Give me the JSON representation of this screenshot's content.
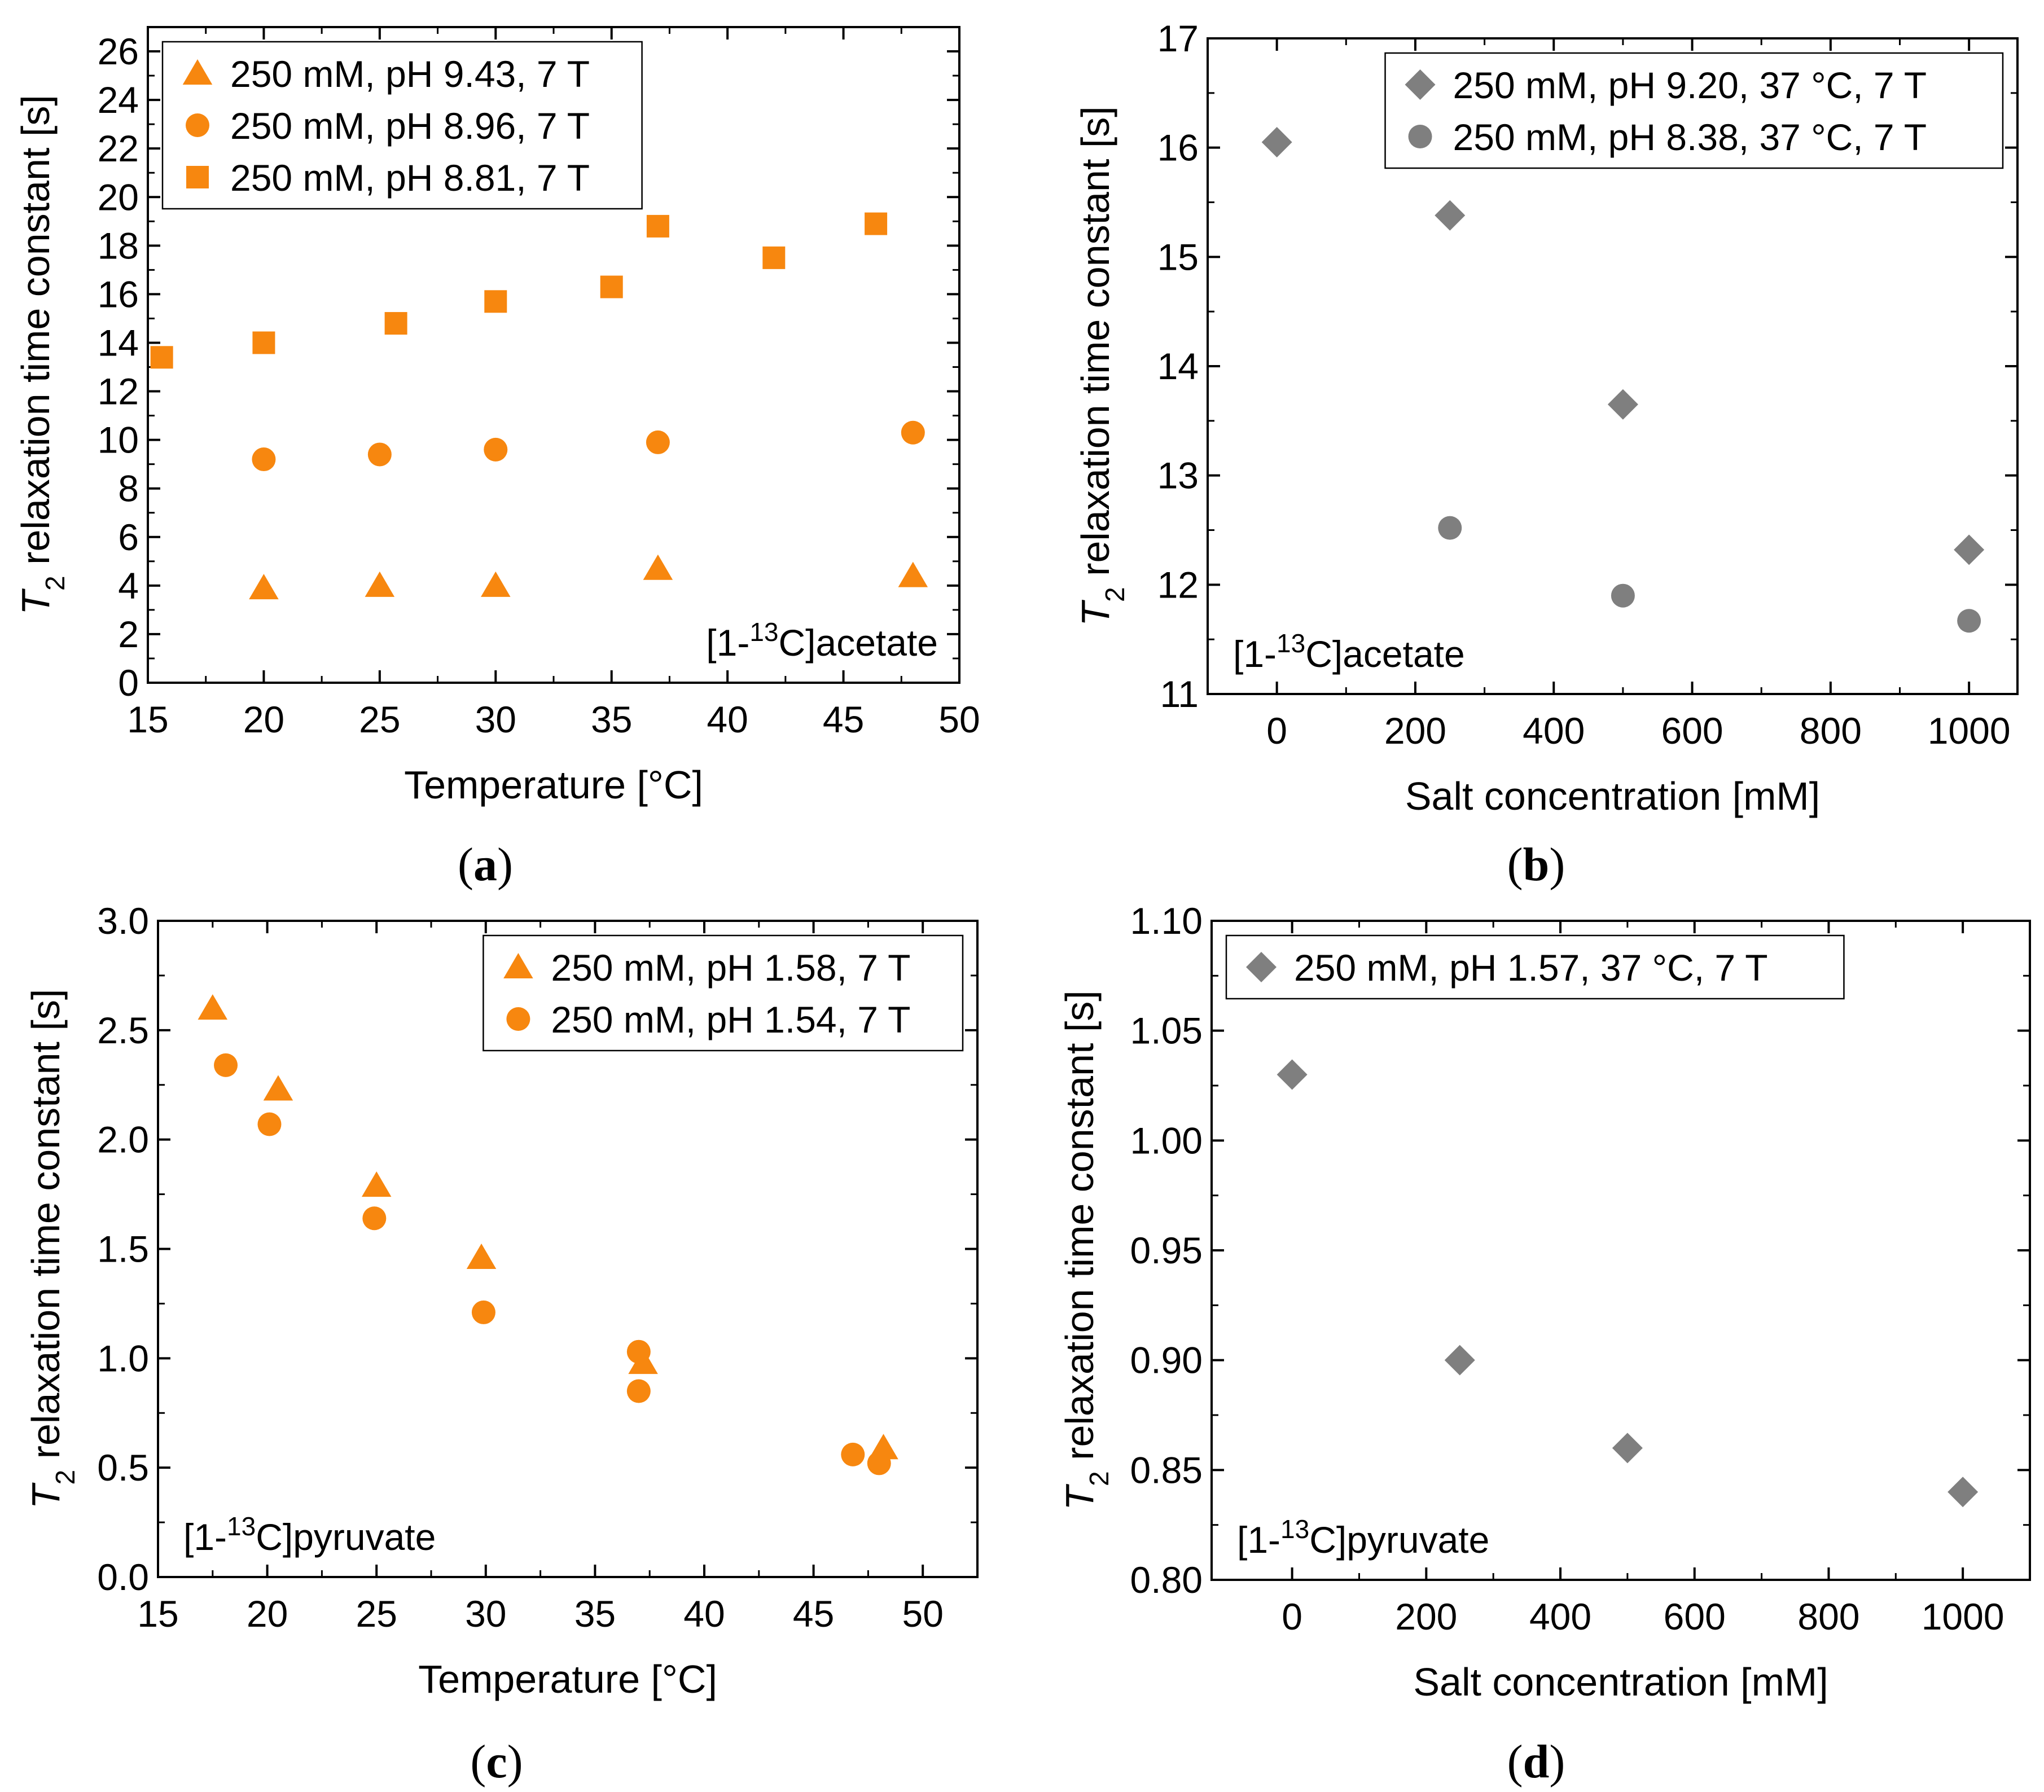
{
  "colors": {
    "orange": "#f7870f",
    "gray": "#7f7f7f",
    "axis": "#000000"
  },
  "chart_data": [
    {
      "id": "a",
      "type": "scatter",
      "caption_letter": "a",
      "xlabel": "Temperature [°C]",
      "ylabel_italic": "T",
      "ylabel_sub": "2",
      "ylabel_rest": " relaxation time constant [s]",
      "xlim": [
        15,
        50
      ],
      "ylim": [
        0,
        27
      ],
      "xticks": [
        15,
        20,
        25,
        30,
        35,
        40,
        45,
        50
      ],
      "yticks": [
        0,
        2,
        4,
        6,
        8,
        10,
        12,
        14,
        16,
        18,
        20,
        22,
        24,
        26
      ],
      "decimals": 0,
      "annotation": {
        "pre": "[1-",
        "sup": "13",
        "post": "C]acetate"
      },
      "annotation_position": "bottom-right",
      "legend_position": "top-left",
      "series": [
        {
          "name": "250 mM, pH 9.43, 7 T",
          "marker": "triangle",
          "color": "#f7870f",
          "x": [
            20,
            25,
            30,
            37,
            48
          ],
          "y": [
            3.9,
            4.0,
            4.0,
            4.7,
            4.4
          ]
        },
        {
          "name": "250 mM, pH 8.96, 7 T",
          "marker": "circle",
          "color": "#f7870f",
          "x": [
            20,
            25,
            30,
            37,
            48
          ],
          "y": [
            9.2,
            9.4,
            9.6,
            9.9,
            10.3
          ]
        },
        {
          "name": "250 mM, pH 8.81, 7 T",
          "marker": "square",
          "color": "#f7870f",
          "x": [
            15.6,
            20,
            25.7,
            30,
            35,
            37,
            42,
            46.4
          ],
          "y": [
            13.4,
            14.0,
            14.8,
            15.7,
            16.3,
            18.8,
            17.5,
            18.9
          ]
        }
      ]
    },
    {
      "id": "b",
      "type": "scatter",
      "caption_letter": "b",
      "xlabel": "Salt concentration [mM]",
      "ylabel_italic": "T",
      "ylabel_sub": "2",
      "ylabel_rest": " relaxation time constant [s]",
      "xlim": [
        -100,
        1070
      ],
      "ylim": [
        11,
        17
      ],
      "xticks": [
        0,
        200,
        400,
        600,
        800,
        1000
      ],
      "yticks": [
        11,
        12,
        13,
        14,
        15,
        16,
        17
      ],
      "decimals": 0,
      "annotation": {
        "pre": "[1-",
        "sup": "13",
        "post": "C]acetate"
      },
      "annotation_position": "bottom-left",
      "legend_position": "top-right",
      "series": [
        {
          "name": "250 mM, pH 9.20, 37 °C, 7 T",
          "marker": "diamond",
          "color": "#7f7f7f",
          "x": [
            0,
            250,
            500,
            1000
          ],
          "y": [
            16.05,
            15.38,
            13.65,
            12.32
          ]
        },
        {
          "name": "250 mM, pH 8.38, 37 °C, 7 T",
          "marker": "circle",
          "color": "#7f7f7f",
          "x": [
            250,
            500,
            1000
          ],
          "y": [
            12.52,
            11.9,
            11.67
          ]
        }
      ]
    },
    {
      "id": "c",
      "type": "scatter",
      "caption_letter": "c",
      "xlabel": "Temperature [°C]",
      "ylabel_italic": "T",
      "ylabel_sub": "2",
      "ylabel_rest": " relaxation time constant [s]",
      "xlim": [
        15,
        52.5
      ],
      "ylim": [
        0,
        3.0
      ],
      "xticks": [
        15,
        20,
        25,
        30,
        35,
        40,
        45,
        50
      ],
      "yticks": [
        0.0,
        0.5,
        1.0,
        1.5,
        2.0,
        2.5,
        3.0
      ],
      "decimals": 1,
      "annotation": {
        "pre": "[1-",
        "sup": "13",
        "post": "C]pyruvate"
      },
      "annotation_position": "bottom-left",
      "legend_position": "top-right",
      "series": [
        {
          "name": "250 mM, pH 1.58, 7 T",
          "marker": "triangle",
          "color": "#f7870f",
          "x": [
            17.5,
            20.5,
            25,
            29.8,
            37.2,
            48.2
          ],
          "y": [
            2.6,
            2.23,
            1.79,
            1.46,
            0.98,
            0.59
          ]
        },
        {
          "name": "250 mM, pH 1.54, 7 T",
          "marker": "circle",
          "color": "#f7870f",
          "x": [
            18.1,
            20.1,
            24.9,
            29.9,
            37,
            37,
            46.8,
            48
          ],
          "y": [
            2.34,
            2.07,
            1.64,
            1.21,
            1.03,
            0.85,
            0.56,
            0.52
          ]
        }
      ]
    },
    {
      "id": "d",
      "type": "scatter",
      "caption_letter": "d",
      "xlabel": "Salt concentration [mM]",
      "ylabel_italic": "T",
      "ylabel_sub": "2",
      "ylabel_rest": " relaxation time constant [s]",
      "xlim": [
        -120,
        1100
      ],
      "ylim": [
        0.8,
        1.1
      ],
      "xticks": [
        0,
        200,
        400,
        600,
        800,
        1000
      ],
      "yticks": [
        0.8,
        0.85,
        0.9,
        0.95,
        1.0,
        1.05,
        1.1
      ],
      "decimals": 2,
      "annotation": {
        "pre": "[1-",
        "sup": "13",
        "post": "C]pyruvate"
      },
      "annotation_position": "bottom-left",
      "legend_position": "top-left",
      "series": [
        {
          "name": "250 mM, pH 1.57, 37 °C, 7 T",
          "marker": "diamond",
          "color": "#7f7f7f",
          "x": [
            0,
            250,
            500,
            1000
          ],
          "y": [
            1.03,
            0.9,
            0.86,
            0.84
          ]
        }
      ]
    }
  ]
}
